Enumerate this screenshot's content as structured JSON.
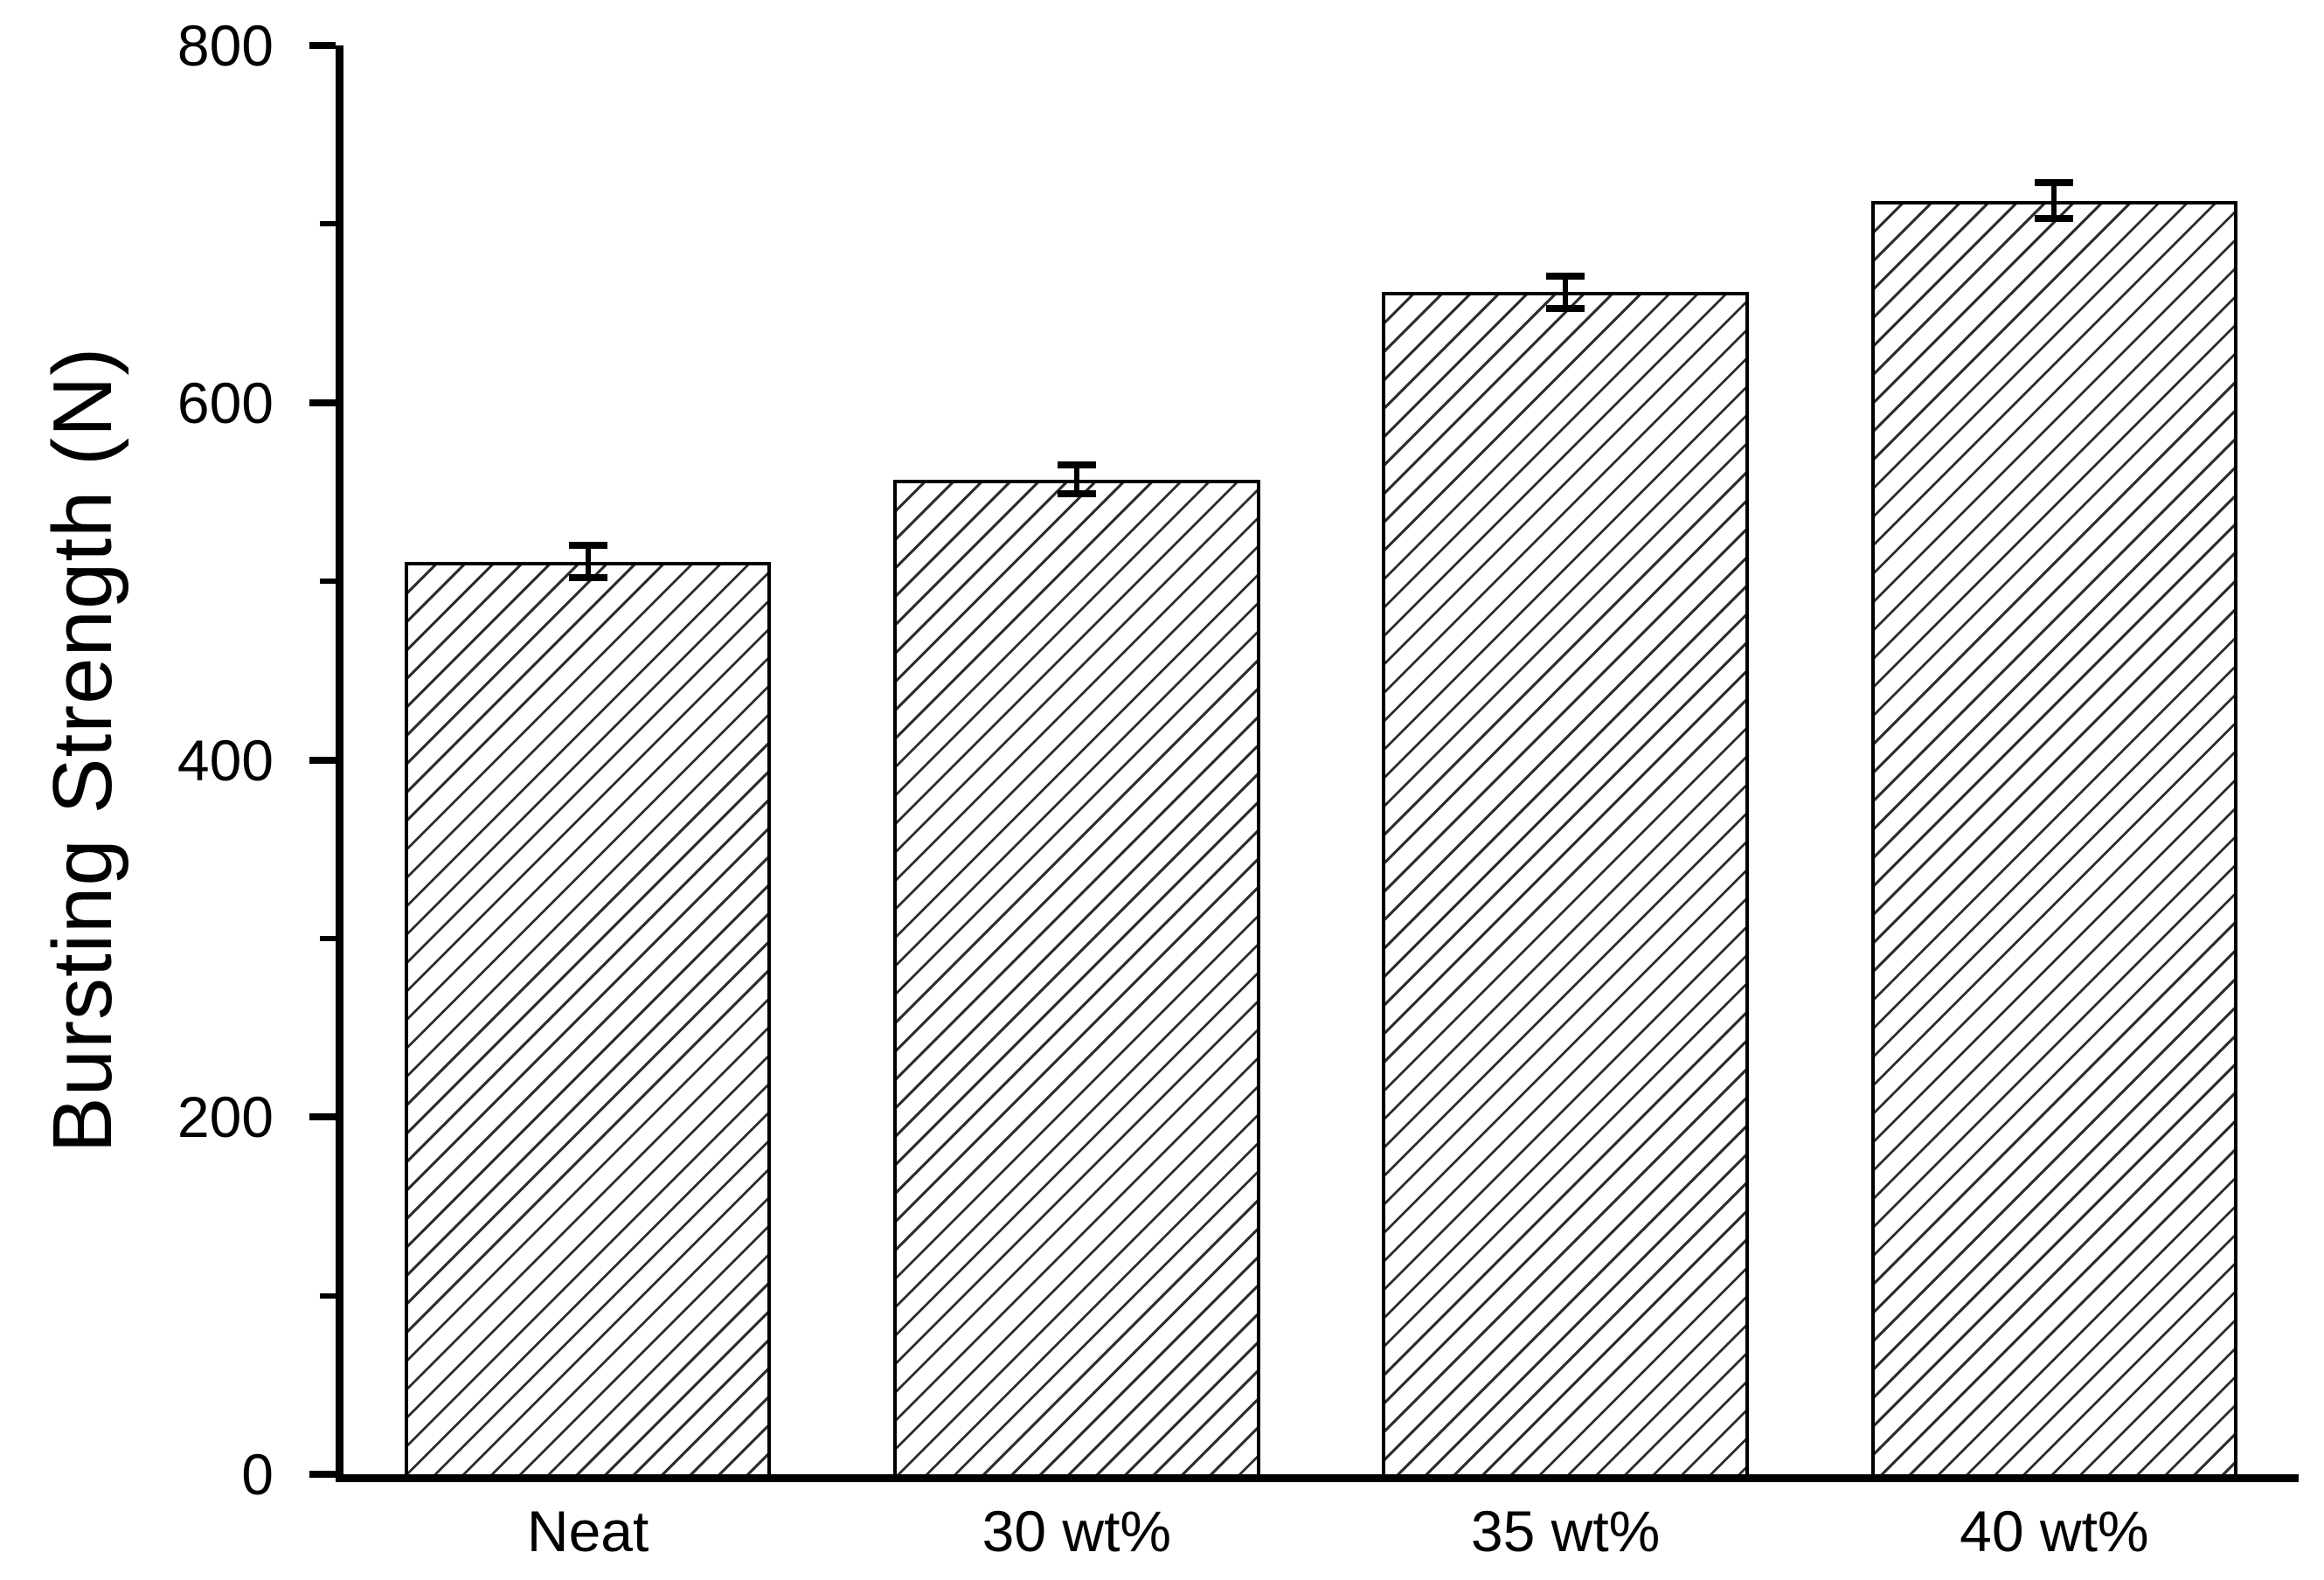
{
  "chart_data": {
    "type": "bar",
    "title": "",
    "categories": [
      "Neat",
      "30 wt%",
      "35 wt%",
      "40 wt%"
    ],
    "values": [
      511,
      557,
      662,
      713
    ],
    "errors": [
      11,
      10,
      11,
      12
    ],
    "ylabel": "Bursting Strength (N)",
    "xlabel": "",
    "ylim": [
      0,
      800
    ],
    "yticks_major": [
      0,
      200,
      400,
      600,
      800
    ],
    "ytick_labels": [
      "0",
      "200",
      "400",
      "600",
      "800"
    ],
    "yticks_minor": [
      100,
      300,
      500,
      700
    ],
    "bar_width_frac": 0.75,
    "grid": false,
    "legend": false,
    "bar_fill": "diagonal-hatch",
    "hatch_direction": "/",
    "bar_face_color": "#ffffff",
    "hatch_line_color": "#2d2d2d",
    "axis_color": "#000000",
    "background_color": "#ffffff"
  }
}
